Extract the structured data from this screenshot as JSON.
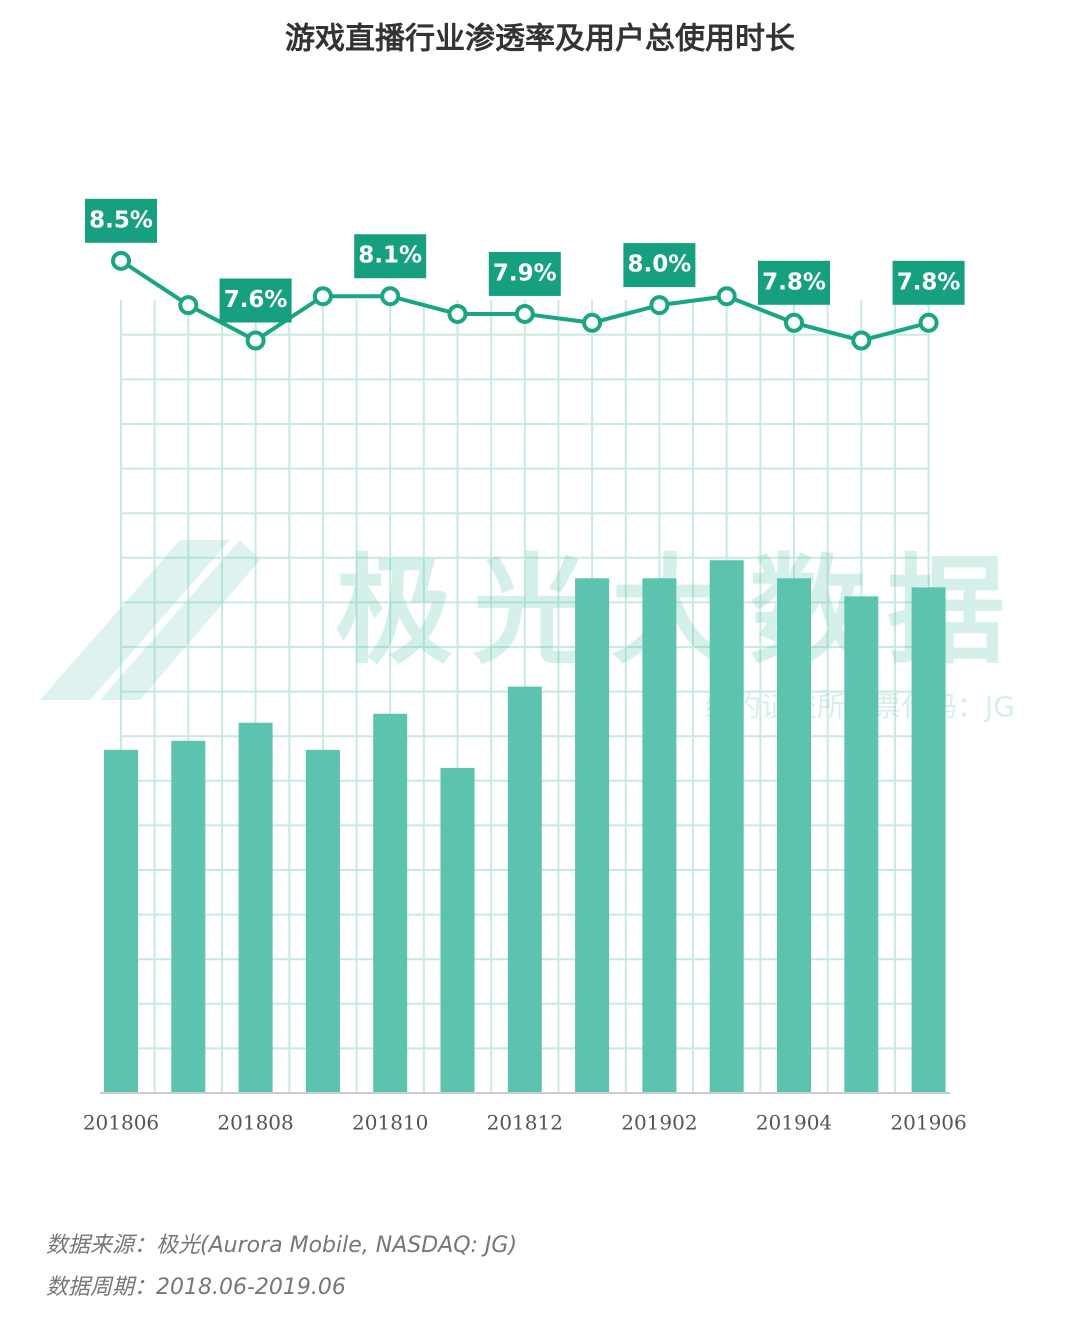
{
  "chart_data": {
    "type": "bar-line",
    "title": "游戏直播行业渗透率及用户总使用时长",
    "categories": [
      "201806",
      null,
      "201808",
      null,
      "201810",
      null,
      "201812",
      null,
      "201902",
      null,
      "201904",
      null,
      "201906"
    ],
    "series": [
      {
        "type": "bar",
        "color": "#5cc3ae",
        "values": [
          38,
          39,
          41,
          38,
          42,
          36,
          45,
          57,
          57,
          59,
          57,
          55,
          56
        ]
      },
      {
        "type": "line",
        "axis": "y2",
        "color": "#1aa584",
        "values": [
          8.5,
          8.0,
          7.6,
          8.1,
          8.1,
          7.9,
          7.9,
          7.8,
          8.0,
          8.1,
          7.8,
          7.6,
          7.8
        ],
        "value_labels": [
          "8.5%",
          null,
          "7.6%",
          null,
          "8.1%",
          null,
          "7.9%",
          null,
          "8.0%",
          null,
          "7.8%",
          null,
          "7.8%"
        ]
      }
    ],
    "ylim": [
      0,
      100
    ],
    "y2lim": [
      -0.9,
      9.3
    ],
    "grid": true,
    "watermark": [
      "极光大数据",
      "纽约证交所股票代码：JG"
    ],
    "source": "数据来源：极光(Aurora Mobile, NASDAQ: JG)",
    "period": "数据周期：2018.06-2019.06"
  }
}
